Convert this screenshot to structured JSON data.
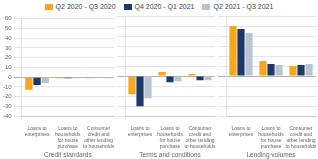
{
  "chart_data": [
    {
      "type": "bar",
      "xlabel": "Credit standards",
      "categories": [
        "Loans to\nenterprises",
        "Loans to\nhouseholds\nfor house\npurchase",
        "Consumer\ncredit and\nother lending\nto households"
      ],
      "series": [
        {
          "name": "Q2 2020 - Q3 2020",
          "color": "#f5a623",
          "values": [
            -13,
            -1,
            -1
          ]
        },
        {
          "name": "Q4 2020 - Q1 2021",
          "color": "#1f3864",
          "values": [
            -8,
            -1,
            0
          ]
        },
        {
          "name": "Q2 2021 - Q3 2021",
          "color": "#b8c4d4",
          "values": [
            -6,
            -1,
            -1
          ]
        }
      ],
      "ylim": [
        -40,
        60
      ],
      "yticks": [
        -40,
        -30,
        -20,
        -10,
        0,
        10,
        20,
        30,
        40,
        50,
        60
      ],
      "grid": true,
      "legend": "top"
    },
    {
      "type": "bar",
      "xlabel": "Terms and conditions",
      "categories": [
        "Loans to\nenterprises",
        "Loans to\nhouseholds\nfor house\npurchase",
        "Consumer\ncredit and\nother lending\nto households"
      ],
      "series": [
        {
          "name": "Q2 2020 - Q3 2020",
          "color": "#f5a623",
          "values": [
            -18,
            4,
            2
          ]
        },
        {
          "name": "Q4 2020 - Q1 2021",
          "color": "#1f3864",
          "values": [
            -30,
            -6,
            -4
          ]
        },
        {
          "name": "Q2 2021 - Q3 2021",
          "color": "#b8c4d4",
          "values": [
            -22,
            -5,
            -4
          ]
        }
      ],
      "ylim": [
        -40,
        60
      ],
      "yticks": [
        -40,
        -30,
        -20,
        -10,
        0,
        10,
        20,
        30,
        40,
        50,
        60
      ],
      "grid": true,
      "tick_labels": "x"
    },
    {
      "type": "bar",
      "xlabel": "Lending volumes",
      "categories": [
        "Loans to\nenterprises",
        "Loans to\nhouseholds\nfor house\npurchase",
        "Consumer\ncredit and\nother lending\nto households"
      ],
      "series": [
        {
          "name": "Q2 2020 - Q3 2020",
          "color": "#f5a623",
          "values": [
            50,
            15,
            10
          ]
        },
        {
          "name": "Q4 2020 - Q1 2021",
          "color": "#1f3864",
          "values": [
            47,
            12,
            11
          ]
        },
        {
          "name": "Q2 2021 - Q3 2021",
          "color": "#b8c4d4",
          "values": [
            43,
            11,
            12
          ]
        }
      ],
      "ylim": [
        -40,
        60
      ],
      "yticks": [
        -40,
        -30,
        -20,
        -10,
        0,
        10,
        20,
        30,
        40,
        50,
        60
      ],
      "grid": true,
      "tick_labels": "x"
    }
  ]
}
